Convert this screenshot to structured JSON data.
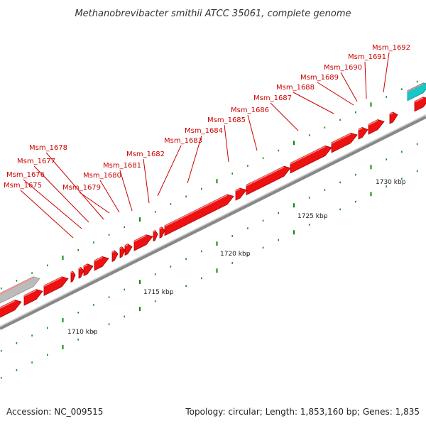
{
  "title": "Methanobrevibacter smithii ATCC 35061, complete genome",
  "accession": "Accession: NC_009515",
  "topology": "Topology: circular; Length: 1,853,160 bp; Genes: 1,835",
  "colors": {
    "gene": "#ee1111",
    "gene_top": "#ff5555",
    "gene_side": "#aa0000",
    "label": "#cc0000",
    "tick": "#0a8a0a",
    "backbone": "#888888",
    "other_feature": "#bbbbbb",
    "cyan_feature": "#18c8c8"
  },
  "kbp_labels": [
    "1710 kbp",
    "1715 kbp",
    "1720 kbp",
    "1725 kbp",
    "1730 kbp"
  ],
  "gene_labels": [
    "Msm_1675",
    "Msm_1676",
    "Msm_1677",
    "Msm_1678",
    "Msm_1679",
    "Msm_1680",
    "Msm_1681",
    "Msm_1682",
    "Msm_1683",
    "Msm_1684",
    "Msm_1685",
    "Msm_1686",
    "Msm_1687",
    "Msm_1688",
    "Msm_1689",
    "Msm_1690",
    "Msm_1691",
    "Msm_1692"
  ]
}
